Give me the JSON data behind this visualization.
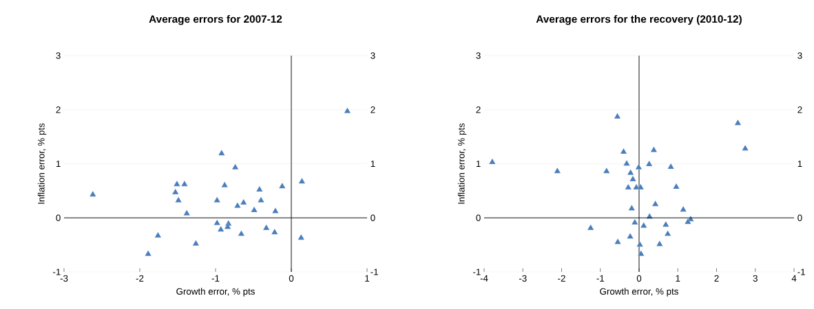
{
  "chart_data": [
    {
      "type": "scatter",
      "title": "Average errors for 2007-12",
      "xlabel": "Growth error, % pts",
      "ylabel": "Inflation error, % pts",
      "xlim": [
        -3,
        1
      ],
      "xticks": [
        -3,
        -2,
        -1,
        0,
        1
      ],
      "ylim": [
        -1,
        3
      ],
      "yticks": [
        -1,
        0,
        1,
        2,
        3
      ],
      "y2lim": [
        -1,
        3
      ],
      "y2ticks": [
        -1,
        0,
        1,
        2,
        3
      ],
      "grid": "y",
      "marker": "triangle",
      "ref_lines": [
        {
          "axis": "x",
          "value": 0
        }
      ],
      "series": [
        {
          "color": "#4a7ebb",
          "x": [
            0.74,
            -0.92,
            -0.74,
            -2.62,
            -1.51,
            -1.41,
            -1.53,
            -1.49,
            -1.38,
            -0.88,
            -0.98,
            -0.71,
            -0.63,
            -0.42,
            -0.4,
            -0.49,
            -0.12,
            0.14,
            -0.21,
            -0.98,
            -0.83,
            -0.84,
            -0.93,
            -0.66,
            -0.33,
            -0.22,
            0.13,
            -1.76,
            -1.26,
            -1.89
          ],
          "values": [
            1.97,
            1.19,
            0.93,
            0.43,
            0.62,
            0.62,
            0.47,
            0.32,
            0.08,
            0.6,
            0.32,
            0.22,
            0.28,
            0.52,
            0.32,
            0.14,
            0.58,
            0.67,
            0.12,
            -0.1,
            -0.11,
            -0.17,
            -0.22,
            -0.3,
            -0.19,
            -0.27,
            -0.37,
            -0.33,
            -0.48,
            -0.67
          ]
        }
      ]
    },
    {
      "type": "scatter",
      "title": "Average errors for the recovery (2010-12)",
      "xlabel": "Growth error, % pts",
      "ylabel": "Inflation error, % pts",
      "xlim": [
        -4,
        4
      ],
      "xticks": [
        -4,
        -3,
        -2,
        -1,
        0,
        1,
        2,
        3,
        4
      ],
      "ylim": [
        -1,
        3
      ],
      "yticks": [
        -1,
        0,
        1,
        2,
        3
      ],
      "y2lim": [
        -1,
        3
      ],
      "y2ticks": [
        -1,
        0,
        1,
        2,
        3
      ],
      "grid": "y",
      "marker": "triangle",
      "ref_lines": [
        {
          "axis": "x",
          "value": 0
        }
      ],
      "series": [
        {
          "color": "#4a7ebb",
          "x": [
            -3.79,
            -2.11,
            -0.84,
            -0.56,
            2.55,
            2.74,
            -0.4,
            0.38,
            -0.32,
            0.26,
            -0.01,
            0.82,
            -0.22,
            -0.16,
            -0.28,
            -0.07,
            0.04,
            0.96,
            0.42,
            -0.19,
            1.14,
            0.27,
            1.33,
            1.26,
            -0.11,
            0.12,
            0.69,
            0.74,
            -1.25,
            -0.23,
            -0.55,
            0.02,
            0.53,
            0.05
          ],
          "values": [
            1.03,
            0.86,
            0.86,
            1.87,
            1.75,
            1.28,
            1.22,
            1.25,
            1.0,
            0.99,
            0.93,
            0.94,
            0.83,
            0.71,
            0.56,
            0.56,
            0.56,
            0.57,
            0.25,
            0.17,
            0.15,
            0.02,
            -0.03,
            -0.08,
            -0.09,
            -0.15,
            -0.13,
            -0.3,
            -0.19,
            -0.35,
            -0.45,
            -0.5,
            -0.49,
            -0.67
          ]
        }
      ]
    }
  ]
}
